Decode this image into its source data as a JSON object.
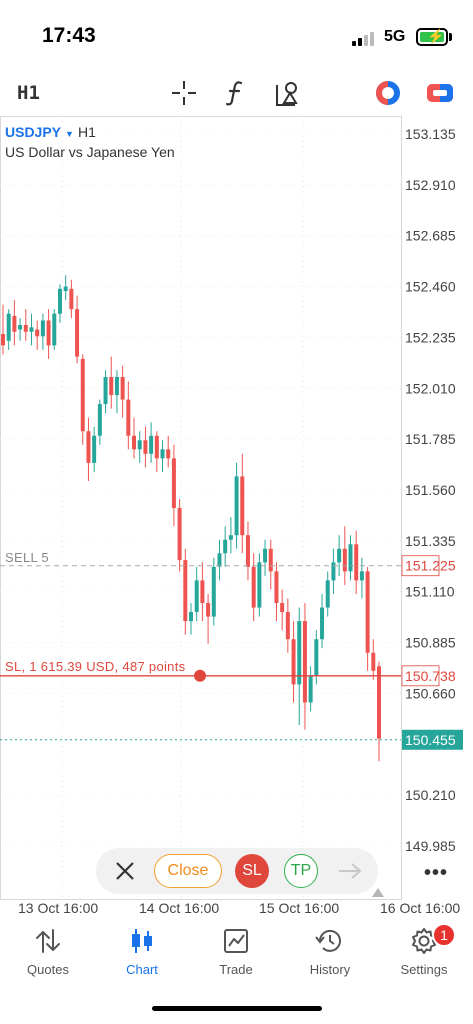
{
  "status": {
    "time": "17:43",
    "network": "5G"
  },
  "toolbar": {
    "timeframe": "H1"
  },
  "symbol": {
    "name": "USDJPY",
    "timeframe": "H1",
    "description": "US Dollar vs Japanese Yen"
  },
  "price_axis": [
    "153.135",
    "152.910",
    "152.685",
    "152.460",
    "152.235",
    "152.010",
    "151.785",
    "151.560",
    "151.335",
    "151.110",
    "150.885",
    "150.660",
    "150.210",
    "149.985"
  ],
  "lines": {
    "sell": {
      "label": "SELL 5",
      "price": "151.225",
      "color": "#e0473c"
    },
    "sl": {
      "label": "SL, 1 615.39 USD, 487 points",
      "price": "150.738",
      "color": "#e0473c"
    },
    "bid": {
      "price": "150.455",
      "color": "#26a69a"
    }
  },
  "time_axis": [
    "13 Oct 16:00",
    "14 Oct 16:00",
    "15 Oct 16:00",
    "16 Oct 16:00"
  ],
  "trade_bar": {
    "close_label": "Close",
    "sl_label": "SL",
    "tp_label": "TP"
  },
  "tabs": [
    {
      "label": "Quotes",
      "icon": "quotes-arrows-icon"
    },
    {
      "label": "Chart",
      "icon": "chart-candles-icon"
    },
    {
      "label": "Trade",
      "icon": "trade-chart-icon"
    },
    {
      "label": "History",
      "icon": "history-clock-icon"
    },
    {
      "label": "Settings",
      "icon": "gear-icon"
    }
  ],
  "settings_badge": "1",
  "colors": {
    "accent": "#1a73e8",
    "bull": "#26a69a",
    "bear": "#ef5350",
    "sl": "#e0473c"
  },
  "chart_data": {
    "type": "candlestick",
    "symbol": "USDJPY",
    "timeframe": "H1",
    "ylim": [
      149.9,
      153.25
    ],
    "y_ticks": [
      153.135,
      152.91,
      152.685,
      152.46,
      152.235,
      152.01,
      151.785,
      151.56,
      151.335,
      151.11,
      150.885,
      150.66,
      150.21,
      149.985
    ],
    "x_ticks": [
      "13 Oct 16:00",
      "14 Oct 16:00",
      "15 Oct 16:00",
      "16 Oct 16:00"
    ],
    "levels": {
      "sell_open": 151.225,
      "stop_loss": 150.738,
      "bid": 150.455
    },
    "candles": [
      {
        "o": 152.25,
        "h": 152.38,
        "c": 152.2,
        "l": 152.16
      },
      {
        "o": 152.22,
        "h": 152.36,
        "c": 152.34,
        "l": 152.18
      },
      {
        "o": 152.33,
        "h": 152.4,
        "c": 152.26,
        "l": 152.2
      },
      {
        "o": 152.27,
        "h": 152.32,
        "c": 152.29,
        "l": 152.22
      },
      {
        "o": 152.29,
        "h": 152.36,
        "c": 152.26,
        "l": 152.22
      },
      {
        "o": 152.26,
        "h": 152.34,
        "c": 152.28,
        "l": 152.2
      },
      {
        "o": 152.27,
        "h": 152.31,
        "c": 152.24,
        "l": 152.18
      },
      {
        "o": 152.24,
        "h": 152.34,
        "c": 152.31,
        "l": 152.18
      },
      {
        "o": 152.31,
        "h": 152.36,
        "c": 152.2,
        "l": 152.14
      },
      {
        "o": 152.2,
        "h": 152.36,
        "c": 152.34,
        "l": 152.18
      },
      {
        "o": 152.34,
        "h": 152.47,
        "c": 152.45,
        "l": 152.3
      },
      {
        "o": 152.44,
        "h": 152.51,
        "c": 152.46,
        "l": 152.4
      },
      {
        "o": 152.45,
        "h": 152.49,
        "c": 152.36,
        "l": 152.32
      },
      {
        "o": 152.36,
        "h": 152.42,
        "c": 152.15,
        "l": 152.12
      },
      {
        "o": 152.14,
        "h": 152.16,
        "c": 151.82,
        "l": 151.76
      },
      {
        "o": 151.82,
        "h": 151.88,
        "c": 151.68,
        "l": 151.6
      },
      {
        "o": 151.68,
        "h": 151.84,
        "c": 151.8,
        "l": 151.64
      },
      {
        "o": 151.8,
        "h": 151.96,
        "c": 151.94,
        "l": 151.76
      },
      {
        "o": 151.94,
        "h": 152.09,
        "c": 152.06,
        "l": 151.9
      },
      {
        "o": 152.06,
        "h": 152.15,
        "c": 151.98,
        "l": 151.92
      },
      {
        "o": 151.98,
        "h": 152.09,
        "c": 152.06,
        "l": 151.9
      },
      {
        "o": 152.06,
        "h": 152.11,
        "c": 151.96,
        "l": 151.88
      },
      {
        "o": 151.96,
        "h": 152.04,
        "c": 151.8,
        "l": 151.74
      },
      {
        "o": 151.8,
        "h": 151.88,
        "c": 151.74,
        "l": 151.7
      },
      {
        "o": 151.74,
        "h": 151.82,
        "c": 151.78,
        "l": 151.68
      },
      {
        "o": 151.78,
        "h": 151.84,
        "c": 151.72,
        "l": 151.66
      },
      {
        "o": 151.72,
        "h": 151.86,
        "c": 151.8,
        "l": 151.68
      },
      {
        "o": 151.8,
        "h": 151.82,
        "c": 151.7,
        "l": 151.64
      },
      {
        "o": 151.7,
        "h": 151.78,
        "c": 151.74,
        "l": 151.64
      },
      {
        "o": 151.74,
        "h": 151.8,
        "c": 151.7,
        "l": 151.66
      },
      {
        "o": 151.7,
        "h": 151.76,
        "c": 151.48,
        "l": 151.4
      },
      {
        "o": 151.48,
        "h": 151.52,
        "c": 151.25,
        "l": 151.2
      },
      {
        "o": 151.25,
        "h": 151.3,
        "c": 150.98,
        "l": 150.92
      },
      {
        "o": 150.98,
        "h": 151.06,
        "c": 151.02,
        "l": 150.92
      },
      {
        "o": 151.02,
        "h": 151.22,
        "c": 151.16,
        "l": 150.98
      },
      {
        "o": 151.16,
        "h": 151.24,
        "c": 151.06,
        "l": 150.98
      },
      {
        "o": 151.06,
        "h": 151.1,
        "c": 151.0,
        "l": 150.88
      },
      {
        "o": 151.0,
        "h": 151.26,
        "c": 151.22,
        "l": 150.96
      },
      {
        "o": 151.22,
        "h": 151.34,
        "c": 151.28,
        "l": 151.16
      },
      {
        "o": 151.28,
        "h": 151.4,
        "c": 151.34,
        "l": 151.22
      },
      {
        "o": 151.34,
        "h": 151.44,
        "c": 151.36,
        "l": 151.28
      },
      {
        "o": 151.36,
        "h": 151.68,
        "c": 151.62,
        "l": 151.3
      },
      {
        "o": 151.62,
        "h": 151.72,
        "c": 151.36,
        "l": 151.28
      },
      {
        "o": 151.36,
        "h": 151.42,
        "c": 151.22,
        "l": 151.16
      },
      {
        "o": 151.22,
        "h": 151.28,
        "c": 151.04,
        "l": 150.98
      },
      {
        "o": 151.04,
        "h": 151.28,
        "c": 151.24,
        "l": 151.0
      },
      {
        "o": 151.24,
        "h": 151.34,
        "c": 151.3,
        "l": 151.18
      },
      {
        "o": 151.3,
        "h": 151.34,
        "c": 151.2,
        "l": 151.12
      },
      {
        "o": 151.2,
        "h": 151.24,
        "c": 151.06,
        "l": 150.98
      },
      {
        "o": 151.06,
        "h": 151.12,
        "c": 151.02,
        "l": 150.94
      },
      {
        "o": 151.02,
        "h": 151.08,
        "c": 150.9,
        "l": 150.84
      },
      {
        "o": 150.9,
        "h": 150.98,
        "c": 150.7,
        "l": 150.62
      },
      {
        "o": 150.7,
        "h": 151.04,
        "c": 150.98,
        "l": 150.52
      },
      {
        "o": 150.98,
        "h": 151.06,
        "c": 150.62,
        "l": 150.5
      },
      {
        "o": 150.62,
        "h": 150.78,
        "c": 150.74,
        "l": 150.58
      },
      {
        "o": 150.74,
        "h": 150.94,
        "c": 150.9,
        "l": 150.7
      },
      {
        "o": 150.9,
        "h": 151.1,
        "c": 151.04,
        "l": 150.86
      },
      {
        "o": 151.04,
        "h": 151.2,
        "c": 151.16,
        "l": 151.0
      },
      {
        "o": 151.16,
        "h": 151.3,
        "c": 151.24,
        "l": 151.1
      },
      {
        "o": 151.24,
        "h": 151.36,
        "c": 151.3,
        "l": 151.18
      },
      {
        "o": 151.3,
        "h": 151.4,
        "c": 151.2,
        "l": 151.14
      },
      {
        "o": 151.2,
        "h": 151.36,
        "c": 151.32,
        "l": 151.16
      },
      {
        "o": 151.32,
        "h": 151.38,
        "c": 151.16,
        "l": 151.1
      },
      {
        "o": 151.16,
        "h": 151.26,
        "c": 151.2,
        "l": 151.08
      },
      {
        "o": 151.2,
        "h": 151.22,
        "c": 150.84,
        "l": 150.76
      },
      {
        "o": 150.84,
        "h": 150.9,
        "c": 150.76,
        "l": 150.72
      },
      {
        "o": 150.78,
        "h": 150.8,
        "c": 150.46,
        "l": 150.36
      }
    ]
  }
}
